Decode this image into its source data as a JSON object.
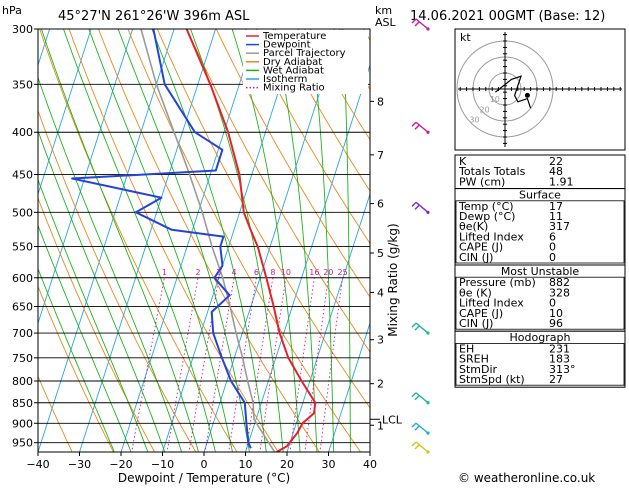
{
  "header": {
    "hpa_label": "hPa",
    "location": "45°27'N  261°26'W  396m  ASL",
    "km_label": "km",
    "asl_label": "ASL",
    "datetime": "14.06.2021  00GMT  (Base: 12)"
  },
  "chart_data": {
    "type": "line",
    "title": "Skew-T log-P diagram",
    "xlabel": "Dewpoint / Temperature (°C)",
    "ylabel": "hPa",
    "xlim": [
      -40,
      40
    ],
    "ylim_hpa": [
      975,
      300
    ],
    "skew_deg_per_decade": 64.1,
    "x_ticks": [
      "−40",
      "−30",
      "−20",
      "−10",
      "0",
      "10",
      "20",
      "30",
      "40"
    ],
    "x_tick_values": [
      -40,
      -30,
      -20,
      -10,
      0,
      10,
      20,
      30,
      40
    ],
    "pressure_levels": [
      300,
      350,
      400,
      450,
      500,
      550,
      600,
      650,
      700,
      750,
      800,
      850,
      900,
      950
    ],
    "pressure_labels": [
      "300",
      "350",
      "400",
      "450",
      "500",
      "550",
      "600",
      "650",
      "700",
      "750",
      "800",
      "850",
      "900",
      "950"
    ],
    "km_ticks": [
      {
        "label": "8",
        "p": 367
      },
      {
        "label": "7",
        "p": 426
      },
      {
        "label": "6",
        "p": 488
      },
      {
        "label": "5",
        "p": 560
      },
      {
        "label": "4",
        "p": 625
      },
      {
        "label": "3",
        "p": 713
      },
      {
        "label": "2",
        "p": 806
      },
      {
        "label": "1",
        "p": 905
      }
    ],
    "lcl": {
      "label": "LCL",
      "p": 890
    },
    "mixing_ratio_label": "Mixing Ratio (g/kg)",
    "mixing_ratios": [
      1,
      2,
      3,
      4,
      6,
      8,
      10,
      16,
      20,
      25
    ],
    "mixing_ratio_labels": [
      "1",
      "2",
      "3",
      "4",
      "6",
      "8",
      "10",
      "16",
      "20",
      "25"
    ],
    "legend": {
      "placement": "top-right",
      "entries": [
        {
          "label": "Temperature",
          "color": "#e8202a",
          "style": "solid"
        },
        {
          "label": "Dewpoint",
          "color": "#2443d8",
          "style": "solid"
        },
        {
          "label": "Parcel Trajectory",
          "color": "#9a9a9a",
          "style": "solid"
        },
        {
          "label": "Dry Adiabat",
          "color": "#e58a1e",
          "style": "solid"
        },
        {
          "label": "Wet Adiabat",
          "color": "#1fb41f",
          "style": "solid"
        },
        {
          "label": "Isotherm",
          "color": "#27a7e0",
          "style": "solid"
        },
        {
          "label": "Mixing Ratio",
          "color": "#d0199a",
          "style": "dotted"
        }
      ]
    },
    "series": [
      {
        "name": "Temperature",
        "color": "#e8202a",
        "points": [
          [
            975,
            17.5
          ],
          [
            960,
            19.5
          ],
          [
            925,
            21
          ],
          [
            900,
            21.5
          ],
          [
            875,
            23.5
          ],
          [
            850,
            23
          ],
          [
            800,
            18
          ],
          [
            750,
            13
          ],
          [
            700,
            9
          ],
          [
            650,
            5.5
          ],
          [
            600,
            1.5
          ],
          [
            550,
            -3
          ],
          [
            525,
            -6
          ],
          [
            500,
            -9
          ],
          [
            450,
            -13
          ],
          [
            400,
            -19
          ],
          [
            350,
            -27
          ],
          [
            300,
            -37
          ]
        ]
      },
      {
        "name": "Dewpoint",
        "color": "#2443d8",
        "points": [
          [
            965,
            11
          ],
          [
            950,
            10
          ],
          [
            925,
            9
          ],
          [
            900,
            8
          ],
          [
            850,
            6
          ],
          [
            800,
            1
          ],
          [
            750,
            -3
          ],
          [
            700,
            -7
          ],
          [
            660,
            -9
          ],
          [
            630,
            -6
          ],
          [
            600,
            -11
          ],
          [
            580,
            -10
          ],
          [
            550,
            -12
          ],
          [
            535,
            -12
          ],
          [
            525,
            -25
          ],
          [
            500,
            -35
          ],
          [
            480,
            -30
          ],
          [
            455,
            -53
          ],
          [
            445,
            -19
          ],
          [
            420,
            -19
          ],
          [
            400,
            -27
          ],
          [
            350,
            -38
          ],
          [
            300,
            -45
          ]
        ]
      },
      {
        "name": "Parcel Trajectory",
        "color": "#9a9a9a",
        "points": [
          [
            975,
            17
          ],
          [
            890,
            9.5
          ],
          [
            850,
            8
          ],
          [
            800,
            5
          ],
          [
            750,
            2
          ],
          [
            700,
            -1.5
          ],
          [
            650,
            -5
          ],
          [
            600,
            -9
          ],
          [
            550,
            -14
          ],
          [
            500,
            -19
          ],
          [
            450,
            -25
          ],
          [
            400,
            -32
          ],
          [
            350,
            -40
          ],
          [
            300,
            -48
          ]
        ]
      }
    ],
    "wind_barbs": [
      {
        "p": 300,
        "color": "#d0199a"
      },
      {
        "p": 400,
        "color": "#d0199a"
      },
      {
        "p": 500,
        "color": "#7a2bd0"
      },
      {
        "p": 700,
        "color": "#1fb4a0"
      },
      {
        "p": 850,
        "color": "#1fb4a0"
      },
      {
        "p": 925,
        "color": "#27a7e0"
      },
      {
        "p": 975,
        "color": "#c8c81e"
      }
    ]
  },
  "hodograph": {
    "unit_label": "kt",
    "ring_labels": [
      "10",
      "20",
      "30"
    ],
    "trace_knots": [
      [
        -6,
        -2
      ],
      [
        4,
        6
      ],
      [
        10,
        8
      ],
      [
        6,
        -4
      ],
      [
        8,
        -8
      ],
      [
        14,
        -6
      ],
      [
        16,
        -12
      ]
    ]
  },
  "indices": {
    "rows": [
      {
        "name": "K",
        "value": "22"
      },
      {
        "name": "Totals Totals",
        "value": "48"
      },
      {
        "name": "PW (cm)",
        "value": "1.91"
      }
    ]
  },
  "surface": {
    "title": "Surface",
    "rows": [
      {
        "name": "Temp (°C)",
        "value": "17"
      },
      {
        "name": "Dewp (°C)",
        "value": "11"
      },
      {
        "name": "θe(K)",
        "value": "317"
      },
      {
        "name": "Lifted Index",
        "value": "6"
      },
      {
        "name": "CAPE (J)",
        "value": "0"
      },
      {
        "name": "CIN (J)",
        "value": "0"
      }
    ]
  },
  "most_unstable": {
    "title": "Most Unstable",
    "rows": [
      {
        "name": "Pressure (mb)",
        "value": "882"
      },
      {
        "name": "θe (K)",
        "value": "328"
      },
      {
        "name": "Lifted Index",
        "value": "0"
      },
      {
        "name": "CAPE (J)",
        "value": "10"
      },
      {
        "name": "CIN (J)",
        "value": "96"
      }
    ]
  },
  "hodograph_table": {
    "title": "Hodograph",
    "rows": [
      {
        "name": "EH",
        "value": "231"
      },
      {
        "name": "SREH",
        "value": "183"
      },
      {
        "name": "StmDir",
        "value": "313°"
      },
      {
        "name": "StmSpd (kt)",
        "value": "27"
      }
    ]
  },
  "footer": {
    "copyright": "© weatheronline.co.uk"
  }
}
